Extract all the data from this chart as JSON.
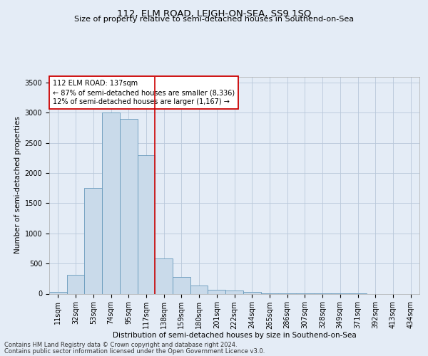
{
  "title1": "112, ELM ROAD, LEIGH-ON-SEA, SS9 1SQ",
  "title2": "Size of property relative to semi-detached houses in Southend-on-Sea",
  "xlabel": "Distribution of semi-detached houses by size in Southend-on-Sea",
  "ylabel": "Number of semi-detached properties",
  "footnote1": "Contains HM Land Registry data © Crown copyright and database right 2024.",
  "footnote2": "Contains public sector information licensed under the Open Government Licence v3.0.",
  "annotation_title": "112 ELM ROAD: 137sqm",
  "annotation_line1": "← 87% of semi-detached houses are smaller (8,336)",
  "annotation_line2": "12% of semi-detached houses are larger (1,167) →",
  "categories": [
    "11sqm",
    "32sqm",
    "53sqm",
    "74sqm",
    "95sqm",
    "117sqm",
    "138sqm",
    "159sqm",
    "180sqm",
    "201sqm",
    "222sqm",
    "244sqm",
    "265sqm",
    "286sqm",
    "307sqm",
    "328sqm",
    "349sqm",
    "371sqm",
    "392sqm",
    "413sqm",
    "434sqm"
  ],
  "values": [
    30,
    310,
    1750,
    3000,
    2900,
    2300,
    590,
    280,
    130,
    70,
    50,
    30,
    10,
    5,
    3,
    2,
    1,
    1,
    0,
    0,
    0
  ],
  "bar_color": "#c9daea",
  "bar_edge_color": "#6699bb",
  "vline_color": "#cc0000",
  "vline_index": 6,
  "annotation_box_facecolor": "#ffffff",
  "annotation_box_edgecolor": "#cc0000",
  "grid_color": "#b8c8da",
  "background_color": "#e4ecf6",
  "ylim": [
    0,
    3600
  ],
  "yticks": [
    0,
    500,
    1000,
    1500,
    2000,
    2500,
    3000,
    3500
  ],
  "title1_fontsize": 9.5,
  "title2_fontsize": 8,
  "tick_fontsize": 7,
  "ylabel_fontsize": 7.5,
  "xlabel_fontsize": 7.5,
  "footnote_fontsize": 6,
  "annotation_fontsize": 7
}
